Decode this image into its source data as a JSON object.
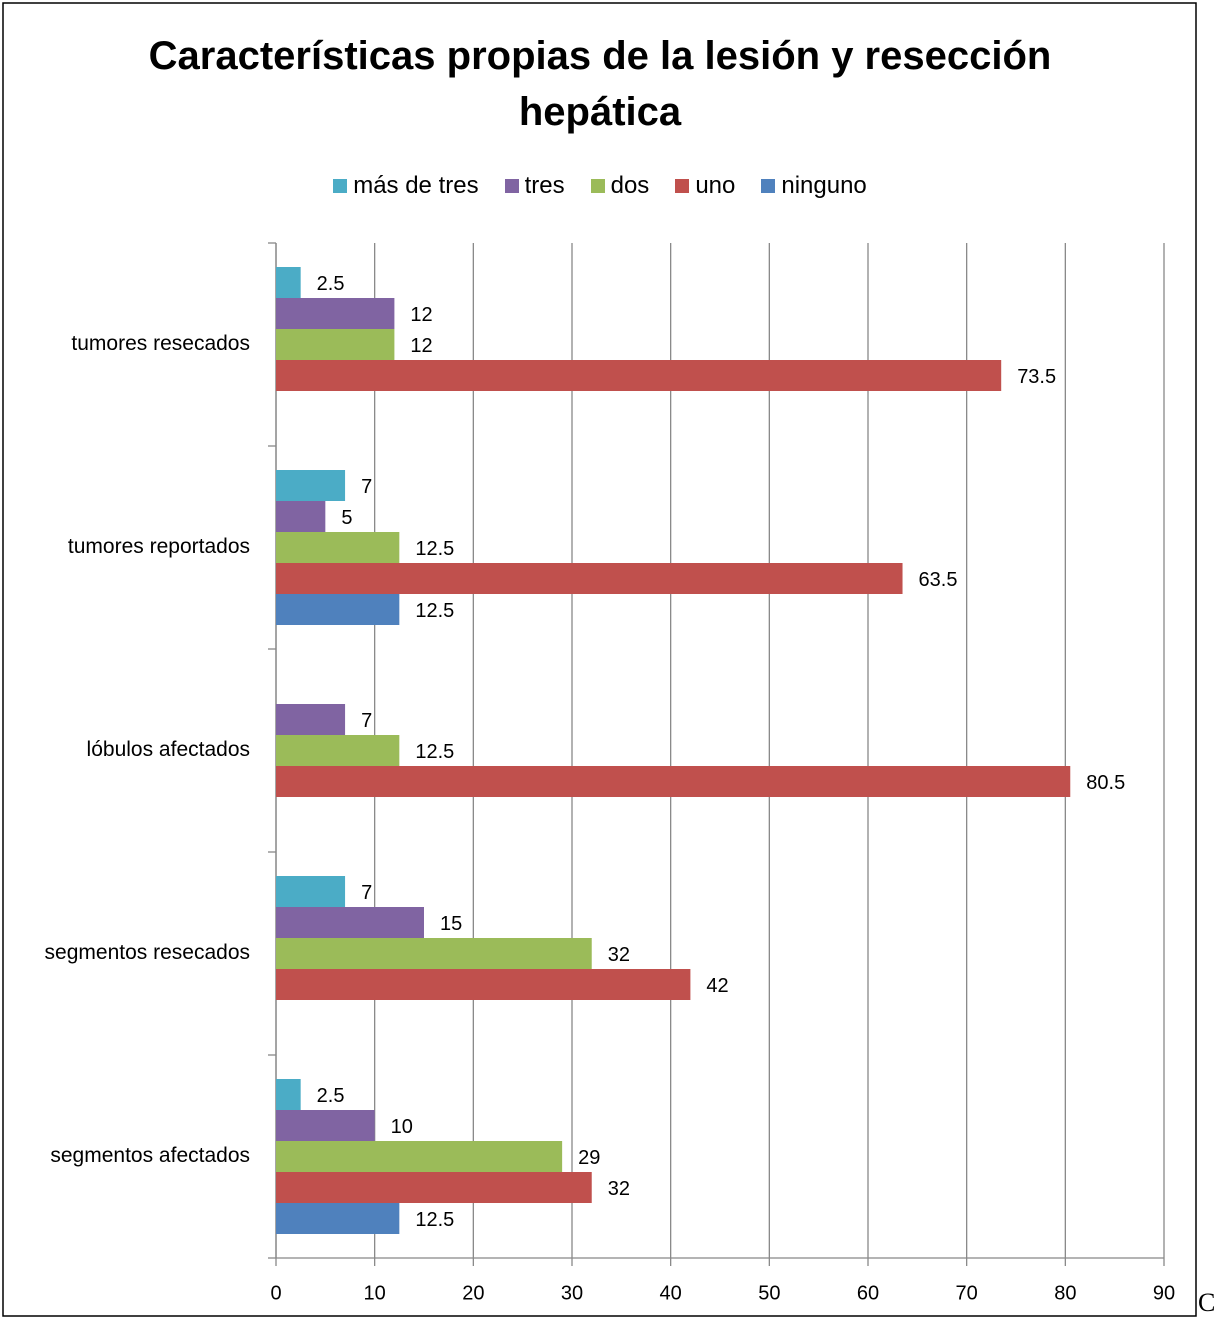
{
  "chart_data": {
    "type": "bar",
    "orientation": "horizontal",
    "title": "Características propias de la lesión y resección hepática",
    "categories": [
      "tumores resecados",
      "tumores reportados",
      "lóbulos afectados",
      "segmentos resecados",
      "segmentos afectados"
    ],
    "series": [
      {
        "name": "más de tres",
        "color": "#4bacc6",
        "values": [
          2.5,
          7,
          null,
          7,
          2.5
        ]
      },
      {
        "name": "tres",
        "color": "#8064a2",
        "values": [
          12,
          5,
          7,
          15,
          10
        ]
      },
      {
        "name": "dos",
        "color": "#9bbb59",
        "values": [
          12,
          12.5,
          12.5,
          32,
          29
        ]
      },
      {
        "name": "uno",
        "color": "#c0504d",
        "values": [
          73.5,
          63.5,
          80.5,
          42,
          32
        ]
      },
      {
        "name": "ninguno",
        "color": "#4f81bd",
        "values": [
          null,
          12.5,
          null,
          null,
          12.5
        ]
      }
    ],
    "xlim": [
      0,
      90
    ],
    "xticks": [
      0,
      10,
      20,
      30,
      40,
      50,
      60,
      70,
      80,
      90
    ],
    "grid": true,
    "legend": "top"
  },
  "caption": "C"
}
